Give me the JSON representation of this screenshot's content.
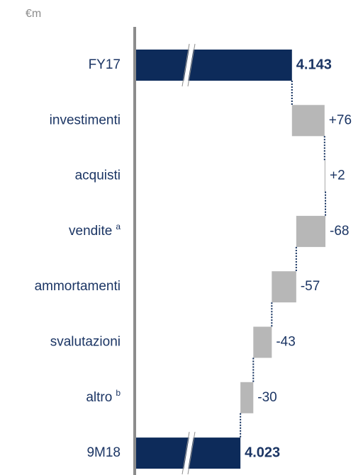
{
  "chart_data": {
    "type": "waterfall",
    "orientation": "horizontal",
    "unit": "€m",
    "categories": [
      "FY17",
      "investimenti",
      "acquisti",
      "vendite",
      "ammortamenti",
      "svalutazioni",
      "altro",
      "9M18"
    ],
    "category_notes": [
      null,
      null,
      null,
      "a",
      null,
      null,
      "b",
      null
    ],
    "measure": [
      "total",
      "relative",
      "relative",
      "relative",
      "relative",
      "relative",
      "relative",
      "total"
    ],
    "values": [
      4143,
      76,
      2,
      -68,
      -57,
      -43,
      -30,
      4023
    ],
    "value_labels": [
      "4.143",
      "+76",
      "+2",
      "-68",
      "-57",
      "-43",
      "-30",
      "4.023"
    ],
    "total_color": "#0d2b5a",
    "delta_color": "#b7b7b7",
    "xlim": [
      3780,
      4292
    ],
    "axis_break": true
  }
}
